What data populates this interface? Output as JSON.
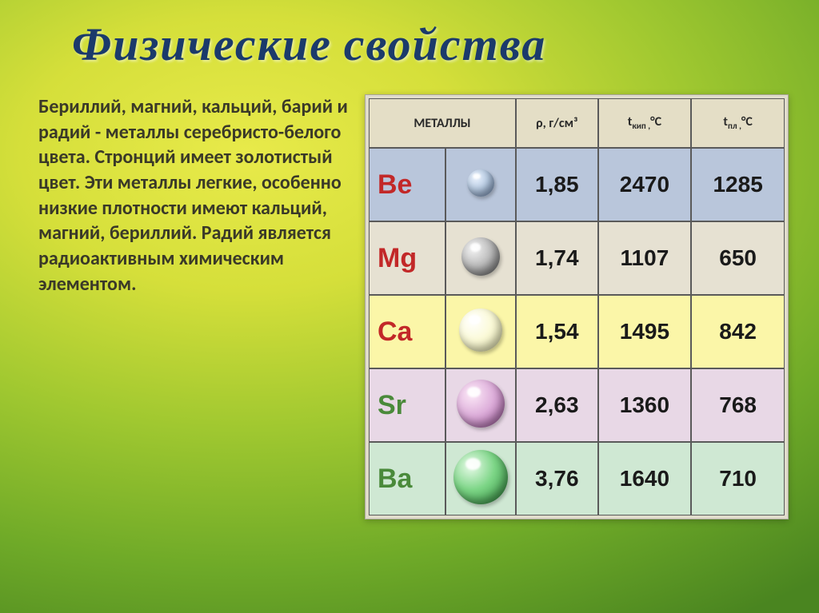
{
  "title": "Физические  свойства",
  "title_color": "#1b3a6b",
  "title_fontsize": 58,
  "paragraph": "Бериллий, магний, кальций, барий и радий - металлы серебристо-белого цвета. Стронций имеет золотистый цвет. Эти металлы легкие, особенно низкие плотности имеют кальций, магний, бериллий.  Радий является радиоактивным химическим элементом.",
  "text_color": "#3a3928",
  "text_fontsize": 24,
  "table": {
    "header_bg": "#e4dec6",
    "columns": {
      "metals": "МЕТАЛЛЫ",
      "density_html": "ρ, г/см³",
      "tboil_html": "t<sub>кип ,</sub>°C",
      "tmelt_html": "t<sub>пл ,</sub>°C"
    },
    "rows": [
      {
        "symbol": "Be",
        "sym_color": "#c22828",
        "row_bg": "#b9c6db",
        "sphere_diameter": 34,
        "sphere_bg": "radial-gradient(circle at 32% 30%, #e9f0fb 0%, #bcd0e8 45%, #7a96be 100%)",
        "density": "1,85",
        "tboil": "2470",
        "tmelt": "1285"
      },
      {
        "symbol": "Mg",
        "sym_color": "#c22828",
        "row_bg": "#e6e1d2",
        "sphere_diameter": 48,
        "sphere_bg": "radial-gradient(circle at 32% 30%, #f4f4f4 0%, #bdbdbd 45%, #6a6a6a 100%)",
        "density": "1,74",
        "tboil": "1107",
        "tmelt": "650"
      },
      {
        "symbol": "Ca",
        "sym_color": "#c22828",
        "row_bg": "#fbf6a8",
        "sphere_diameter": 54,
        "sphere_bg": "radial-gradient(circle at 32% 30%, #ffffff 0%, #fbfad8 45%, #e9e8b0 100%)",
        "density": "1,54",
        "tboil": "1495",
        "tmelt": "842"
      },
      {
        "symbol": "Sr",
        "sym_color": "#4a8a3a",
        "row_bg": "#e8d8e6",
        "sphere_diameter": 60,
        "sphere_bg": "radial-gradient(circle at 32% 30%, #fdeaf8 0%, #deb0db 45%, #a85aa4 100%)",
        "density": "2,63",
        "tboil": "1360",
        "tmelt": "768"
      },
      {
        "symbol": "Ba",
        "sym_color": "#4a8a3a",
        "row_bg": "#cfe8d3",
        "sphere_diameter": 68,
        "sphere_bg": "radial-gradient(circle at 32% 30%, #e8fbe9 0%, #7cd586 45%, #2a8a38 100%)",
        "density": "3,76",
        "tboil": "1640",
        "tmelt": "710"
      }
    ]
  }
}
